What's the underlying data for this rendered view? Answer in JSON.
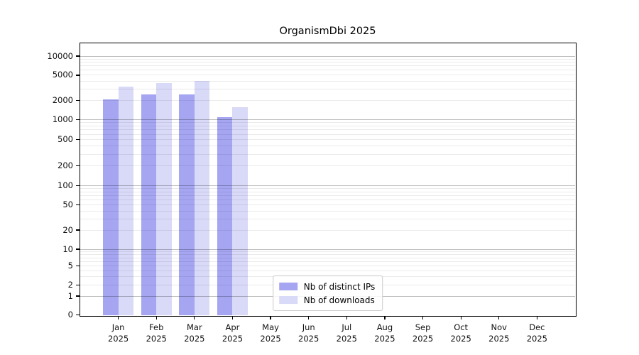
{
  "figure": {
    "title": "OrganismDbi 2025"
  },
  "chart_data": {
    "type": "bar",
    "title": "OrganismDbi 2025",
    "categories": [
      "Jan 2025",
      "Feb 2025",
      "Mar 2025",
      "Apr 2025",
      "May 2025",
      "Jun 2025",
      "Jul 2025",
      "Aug 2025",
      "Sep 2025",
      "Oct 2025",
      "Nov 2025",
      "Dec 2025"
    ],
    "x_months": [
      "Jan",
      "Feb",
      "Mar",
      "Apr",
      "May",
      "Jun",
      "Jul",
      "Aug",
      "Sep",
      "Oct",
      "Nov",
      "Dec"
    ],
    "x_year": "2025",
    "series": [
      {
        "name": "Nb of distinct IPs",
        "color": "#a5a5f2",
        "values": [
          2100,
          2500,
          2500,
          1090,
          0,
          0,
          0,
          0,
          0,
          0,
          0,
          0
        ]
      },
      {
        "name": "Nb of downloads",
        "color": "#d9d9f8",
        "values": [
          3350,
          3800,
          4050,
          1580,
          0,
          0,
          0,
          0,
          0,
          0,
          0,
          0
        ]
      }
    ],
    "y_ticks": [
      0,
      1,
      2,
      5,
      10,
      20,
      50,
      100,
      200,
      500,
      1000,
      2000,
      5000,
      10000
    ],
    "y_scale": "log",
    "ylim": [
      0,
      16000
    ],
    "grid": true,
    "legend_position": "lower center",
    "colors": {
      "axis": "#000000",
      "grid_major": "#bdbdbd",
      "grid_minor": "#ebebeb",
      "background": "#ffffff"
    }
  }
}
